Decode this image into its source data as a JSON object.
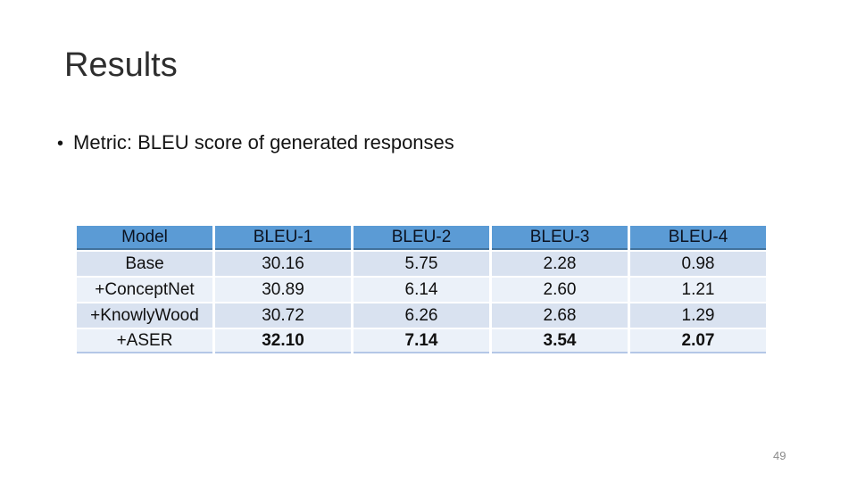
{
  "slide": {
    "title": "Results",
    "bullet_glyph": "•",
    "bullet": "Metric: BLEU score of generated responses",
    "page_number": "49"
  },
  "table": {
    "headers": [
      "Model",
      "BLEU-1",
      "BLEU-2",
      "BLEU-3",
      "BLEU-4"
    ],
    "rows": [
      {
        "model": "Base",
        "values": [
          "30.16",
          "5.75",
          "2.28",
          "0.98"
        ],
        "bold": false
      },
      {
        "model": "+ConceptNet",
        "values": [
          "30.89",
          "6.14",
          "2.60",
          "1.21"
        ],
        "bold": false
      },
      {
        "model": "+KnowlyWood",
        "values": [
          "30.72",
          "6.26",
          "2.68",
          "1.29"
        ],
        "bold": false
      },
      {
        "model": "+ASER",
        "values": [
          "32.10",
          "7.14",
          "3.54",
          "2.07"
        ],
        "bold": true
      }
    ]
  },
  "colors": {
    "header_bg": "#5B9BD5",
    "header_bottom_border": "#41719C",
    "band_dark": "#D9E2F0",
    "band_light": "#EBF1F9",
    "table_bottom_border": "#B4C7E7",
    "title_text": "#2e2e2e",
    "body_text": "#141414",
    "page_number_text": "#8b8b8b"
  },
  "chart_data": {
    "type": "table",
    "title": "BLEU score of generated responses",
    "categories": [
      "Base",
      "+ConceptNet",
      "+KnowlyWood",
      "+ASER"
    ],
    "series": [
      {
        "name": "BLEU-1",
        "values": [
          30.16,
          30.89,
          30.72,
          32.1
        ]
      },
      {
        "name": "BLEU-2",
        "values": [
          5.75,
          6.14,
          6.26,
          7.14
        ]
      },
      {
        "name": "BLEU-3",
        "values": [
          2.28,
          2.6,
          2.68,
          3.54
        ]
      },
      {
        "name": "BLEU-4",
        "values": [
          0.98,
          1.21,
          1.29,
          2.07
        ]
      }
    ]
  }
}
